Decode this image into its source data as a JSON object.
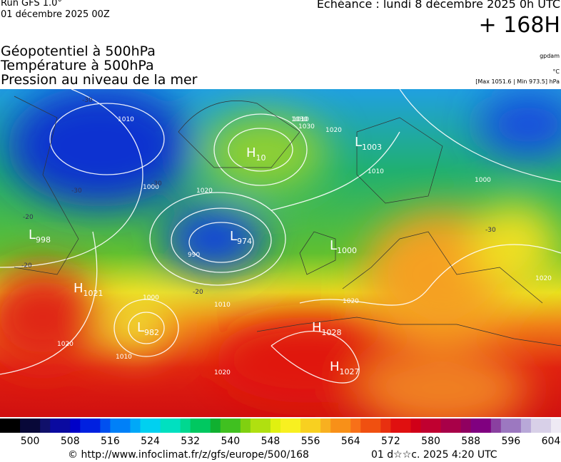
{
  "header": {
    "run": "Run GFS 1.0°",
    "run_date": "01 décembre 2025 00Z",
    "valid": "Echéance : lundi 8 décembre 2025 0h UTC",
    "lead": "+ 168H",
    "fields": [
      "Géopotentiel à 500hPa",
      "Température à 500hPa",
      "Pression au niveau de la mer"
    ],
    "unit_geopotential": "gpdam",
    "unit_temperature": "°C",
    "pressure_range": "[Max 1051.6 | Min 973.5] hPa"
  },
  "map": {
    "centers": [
      {
        "letter": "L",
        "value": 1003
      },
      {
        "letter": "H",
        "value": 10
      },
      {
        "letter": "L",
        "value": 974
      },
      {
        "letter": "L",
        "value": 998
      },
      {
        "letter": "L",
        "value": 1000
      },
      {
        "letter": "H",
        "value": 1021
      },
      {
        "letter": "L",
        "value": 982
      },
      {
        "letter": "H",
        "value": 1028
      },
      {
        "letter": "H",
        "value": 1027
      }
    ],
    "isobar_labels": [
      1010,
      1020,
      1000,
      990,
      1030,
      1020,
      1010,
      1000,
      1020,
      1010,
      1020,
      1030,
      1020,
      1010,
      1020,
      1000,
      1010
    ],
    "temperature_labels": [
      -30,
      -20,
      -30,
      -30,
      -20,
      -20,
      -30
    ]
  },
  "colorbar": {
    "range": [
      494,
      606
    ],
    "ticks": [
      500,
      508,
      516,
      524,
      532,
      540,
      548,
      556,
      564,
      572,
      580,
      588,
      596,
      604
    ]
  },
  "footer": {
    "source": "© http://www.infoclimat.fr/z/gfs/europe/500/168",
    "generated": "01 d☆☆c. 2025  4:20 UTC"
  }
}
